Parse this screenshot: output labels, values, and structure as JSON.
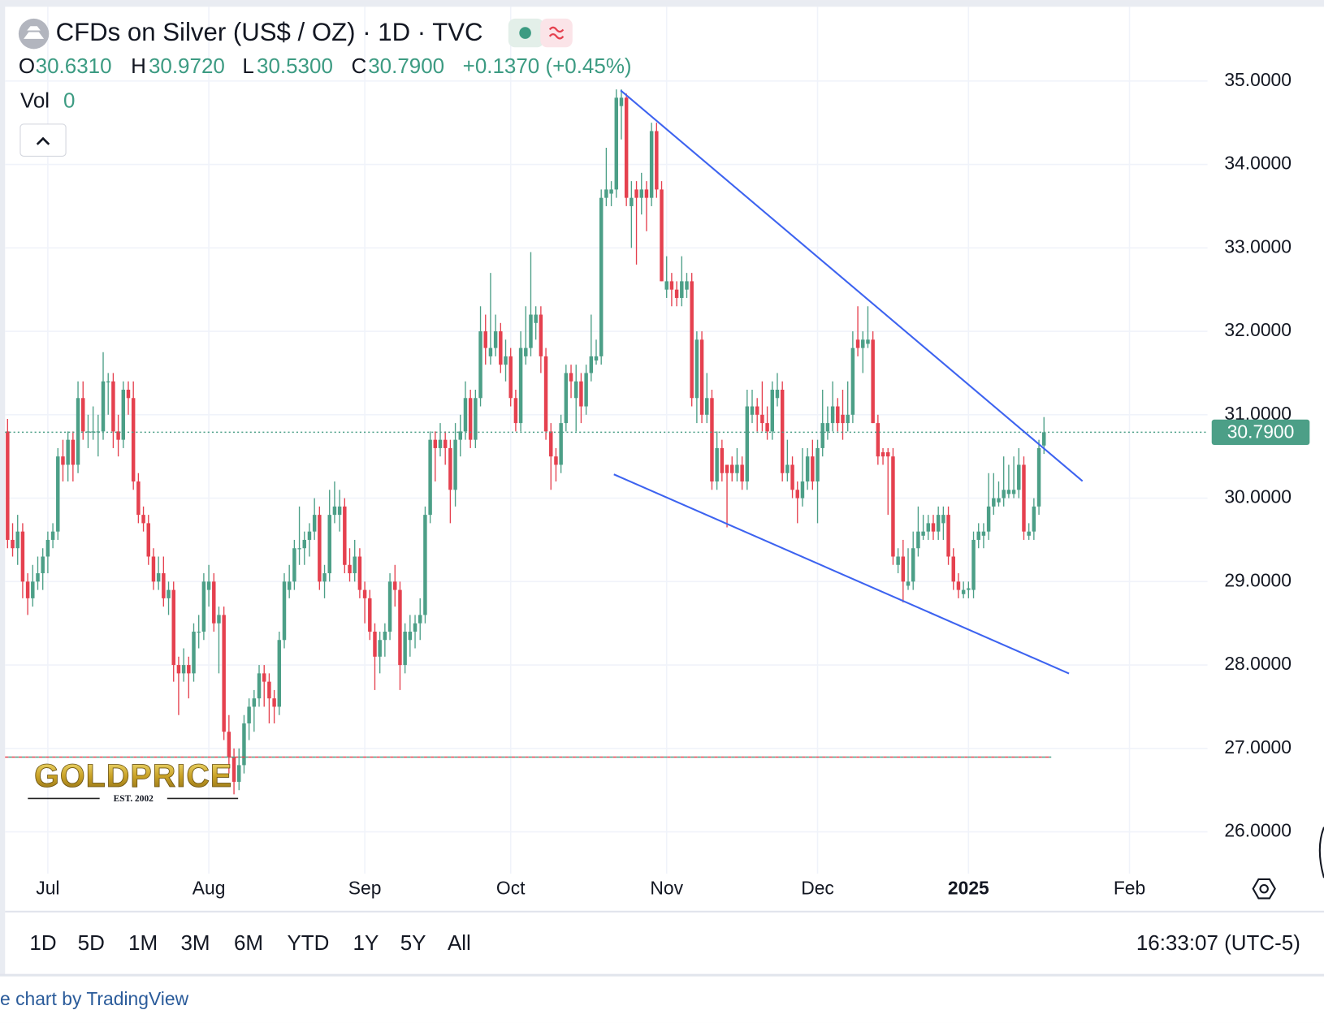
{
  "header": {
    "title": "CFDs on Silver (US$ / OZ) · 1D · TVC",
    "open_label": "O",
    "open": "30.6310",
    "high_label": "H",
    "high": "30.9720",
    "low_label": "L",
    "low": "30.5300",
    "close_label": "C",
    "close": "30.7900",
    "change": "+0.1370 (+0.45%)",
    "volume_label": "Vol",
    "volume": "0"
  },
  "chart_data": {
    "type": "candlestick",
    "up_color": "#4c9f87",
    "down_color": "#e5414f",
    "grid": true,
    "ylim": [
      25.5,
      35.89
    ],
    "yticks": [
      {
        "value": 26,
        "label": "26.0000"
      },
      {
        "value": 27,
        "label": "27.0000"
      },
      {
        "value": 28,
        "label": "28.0000"
      },
      {
        "value": 29,
        "label": "29.0000"
      },
      {
        "value": 30,
        "label": "30.0000"
      },
      {
        "value": 31,
        "label": "31.0000"
      },
      {
        "value": 32,
        "label": "32.0000"
      },
      {
        "value": 33,
        "label": "33.0000"
      },
      {
        "value": 34,
        "label": "34.0000"
      },
      {
        "value": 35,
        "label": "35.0000"
      }
    ],
    "last_price_label": "30.7900",
    "categories": [
      null,
      null,
      null,
      null,
      null,
      null,
      null,
      null,
      "Jul",
      null,
      null,
      null,
      null,
      null,
      null,
      null,
      null,
      null,
      null,
      null,
      null,
      null,
      null,
      null,
      null,
      null,
      null,
      null,
      null,
      null,
      null,
      null,
      null,
      null,
      null,
      null,
      null,
      null,
      null,
      null,
      "Aug",
      null,
      null,
      null,
      null,
      null,
      null,
      null,
      null,
      null,
      null,
      null,
      null,
      null,
      null,
      null,
      null,
      null,
      null,
      null,
      null,
      null,
      null,
      null,
      null,
      null,
      null,
      null,
      null,
      null,
      null,
      "Sep",
      null,
      null,
      null,
      null,
      null,
      null,
      null,
      null,
      null,
      null,
      null,
      null,
      null,
      null,
      null,
      null,
      null,
      null,
      null,
      null,
      null,
      null,
      null,
      null,
      null,
      null,
      null,
      null,
      "Oct",
      null,
      null,
      null,
      null,
      null,
      null,
      null,
      null,
      null,
      null,
      null,
      null,
      null,
      null,
      null,
      null,
      null,
      null,
      null,
      null,
      null,
      null,
      null,
      null,
      null,
      null,
      null,
      null,
      null,
      null,
      "Nov",
      null,
      null,
      null,
      null,
      null,
      null,
      null,
      null,
      null,
      null,
      null,
      null,
      null,
      null,
      null,
      null,
      null,
      null,
      null,
      null,
      null,
      null,
      null,
      null,
      null,
      null,
      null,
      null,
      null,
      "Dec",
      null,
      null,
      null,
      null,
      null,
      null,
      null,
      null,
      null,
      null,
      null,
      null,
      null,
      null,
      null,
      null,
      null,
      null,
      null,
      null,
      null,
      null,
      null,
      null,
      null,
      null,
      null,
      null,
      null,
      "2025",
      null,
      null,
      null,
      null,
      null,
      null,
      null,
      null,
      null,
      null,
      null,
      null,
      null,
      null,
      null,
      null,
      null,
      null,
      null,
      null,
      null,
      null,
      null,
      null,
      null,
      null,
      null,
      null,
      null,
      null,
      null,
      "Feb",
      null,
      null,
      null,
      null,
      null,
      null,
      null,
      null,
      null,
      null,
      null,
      null,
      null,
      null,
      null
    ],
    "ohlc": [
      [
        30.8,
        30.95,
        29.4,
        29.5
      ],
      [
        29.5,
        29.7,
        29.3,
        29.4
      ],
      [
        29.4,
        29.8,
        29.2,
        29.6
      ],
      [
        29.6,
        29.7,
        28.8,
        29.0
      ],
      [
        29.0,
        29.1,
        28.6,
        28.8
      ],
      [
        28.8,
        29.2,
        28.7,
        29.0
      ],
      [
        29.0,
        29.3,
        28.9,
        29.1
      ],
      [
        29.1,
        29.4,
        28.9,
        29.3
      ],
      [
        29.3,
        29.6,
        29.1,
        29.5
      ],
      [
        29.5,
        29.7,
        29.4,
        29.6
      ],
      [
        29.6,
        30.6,
        29.5,
        30.5
      ],
      [
        30.5,
        30.7,
        30.2,
        30.4
      ],
      [
        30.4,
        30.8,
        30.2,
        30.7
      ],
      [
        30.7,
        30.8,
        30.2,
        30.4
      ],
      [
        30.4,
        31.4,
        30.3,
        31.2
      ],
      [
        31.2,
        31.4,
        30.7,
        30.8
      ],
      [
        30.8,
        31.0,
        30.6,
        30.8
      ],
      [
        30.8,
        31.1,
        30.7,
        30.8
      ],
      [
        30.8,
        31.0,
        30.5,
        30.8
      ],
      [
        30.8,
        31.75,
        30.7,
        31.4
      ],
      [
        31.4,
        31.5,
        31.0,
        31.4
      ],
      [
        31.4,
        31.5,
        30.6,
        30.8
      ],
      [
        30.8,
        31.0,
        30.5,
        30.7
      ],
      [
        30.7,
        31.4,
        30.6,
        31.3
      ],
      [
        31.3,
        31.4,
        31.0,
        31.2
      ],
      [
        31.2,
        31.4,
        30.1,
        30.2
      ],
      [
        30.2,
        30.3,
        29.7,
        29.8
      ],
      [
        29.8,
        29.9,
        29.6,
        29.7
      ],
      [
        29.7,
        29.8,
        29.2,
        29.3
      ],
      [
        29.3,
        29.4,
        28.9,
        29.0
      ],
      [
        29.0,
        29.3,
        28.9,
        29.1
      ],
      [
        29.1,
        29.3,
        28.7,
        28.8
      ],
      [
        28.8,
        29.0,
        28.6,
        28.9
      ],
      [
        28.9,
        29.0,
        27.8,
        28.0
      ],
      [
        28.0,
        28.1,
        27.4,
        27.9
      ],
      [
        27.9,
        28.2,
        27.8,
        28.0
      ],
      [
        28.0,
        28.1,
        27.6,
        27.9
      ],
      [
        27.9,
        28.5,
        27.8,
        28.4
      ],
      [
        28.4,
        28.6,
        28.2,
        28.4
      ],
      [
        28.4,
        29.1,
        28.3,
        29.0
      ],
      [
        28.9,
        29.2,
        28.7,
        29.0
      ],
      [
        29.0,
        29.1,
        28.4,
        28.5
      ],
      [
        28.5,
        28.7,
        27.9,
        28.6
      ],
      [
        28.6,
        28.7,
        27.1,
        27.2
      ],
      [
        27.2,
        27.4,
        26.7,
        26.9
      ],
      [
        26.9,
        27.0,
        26.45,
        26.6
      ],
      [
        26.6,
        27.0,
        26.5,
        26.8
      ],
      [
        26.8,
        27.4,
        26.7,
        27.3
      ],
      [
        27.3,
        27.6,
        27.1,
        27.5
      ],
      [
        27.5,
        27.7,
        27.2,
        27.6
      ],
      [
        27.6,
        28.0,
        27.5,
        27.9
      ],
      [
        27.9,
        28.0,
        27.5,
        27.8
      ],
      [
        27.8,
        27.9,
        27.3,
        27.6
      ],
      [
        27.6,
        27.7,
        27.3,
        27.5
      ],
      [
        27.5,
        28.4,
        27.4,
        28.3
      ],
      [
        28.3,
        29.1,
        28.2,
        29.0
      ],
      [
        28.9,
        29.2,
        28.8,
        29.0
      ],
      [
        29.0,
        29.5,
        28.9,
        29.4
      ],
      [
        29.4,
        29.9,
        29.2,
        29.4
      ],
      [
        29.4,
        29.6,
        29.2,
        29.5
      ],
      [
        29.5,
        29.7,
        29.3,
        29.6
      ],
      [
        29.6,
        30.0,
        29.5,
        29.8
      ],
      [
        29.8,
        29.9,
        28.9,
        29.0
      ],
      [
        29.0,
        29.2,
        28.8,
        29.1
      ],
      [
        29.1,
        30.1,
        29.0,
        29.8
      ],
      [
        29.8,
        30.2,
        29.7,
        29.9
      ],
      [
        29.8,
        30.1,
        29.6,
        29.9
      ],
      [
        29.9,
        30.0,
        29.1,
        29.2
      ],
      [
        29.2,
        29.4,
        29.0,
        29.1
      ],
      [
        29.1,
        29.5,
        29.0,
        29.3
      ],
      [
        29.3,
        29.4,
        28.8,
        28.9
      ],
      [
        28.9,
        29.0,
        28.5,
        28.8
      ],
      [
        28.8,
        28.9,
        28.3,
        28.4
      ],
      [
        28.4,
        28.5,
        27.7,
        28.1
      ],
      [
        28.1,
        28.4,
        27.9,
        28.3
      ],
      [
        28.3,
        28.5,
        28.1,
        28.4
      ],
      [
        28.4,
        29.1,
        28.3,
        29.0
      ],
      [
        29.0,
        29.2,
        28.7,
        28.9
      ],
      [
        28.9,
        29.0,
        27.7,
        28.0
      ],
      [
        28.0,
        28.5,
        27.9,
        28.4
      ],
      [
        28.3,
        28.6,
        28.1,
        28.4
      ],
      [
        28.4,
        28.6,
        28.2,
        28.5
      ],
      [
        28.5,
        28.8,
        28.3,
        28.6
      ],
      [
        28.6,
        29.9,
        28.5,
        29.8
      ],
      [
        29.8,
        30.8,
        29.7,
        30.7
      ],
      [
        30.7,
        30.8,
        30.2,
        30.6
      ],
      [
        30.6,
        30.9,
        30.5,
        30.7
      ],
      [
        30.7,
        30.8,
        30.4,
        30.6
      ],
      [
        30.6,
        30.7,
        29.7,
        30.1
      ],
      [
        30.1,
        30.9,
        29.9,
        30.7
      ],
      [
        30.7,
        31.0,
        30.5,
        30.8
      ],
      [
        30.8,
        31.4,
        30.7,
        31.2
      ],
      [
        31.2,
        31.3,
        30.6,
        30.7
      ],
      [
        30.7,
        31.3,
        30.6,
        31.2
      ],
      [
        31.2,
        32.3,
        31.1,
        32.0
      ],
      [
        32.0,
        32.2,
        31.6,
        31.8
      ],
      [
        31.7,
        32.7,
        31.6,
        31.8
      ],
      [
        31.8,
        32.2,
        31.7,
        32.0
      ],
      [
        32.0,
        32.1,
        31.5,
        31.6
      ],
      [
        31.6,
        31.9,
        31.4,
        31.7
      ],
      [
        31.7,
        31.8,
        31.1,
        31.2
      ],
      [
        31.2,
        31.3,
        30.8,
        30.9
      ],
      [
        30.9,
        32.0,
        30.8,
        31.8
      ],
      [
        31.7,
        32.3,
        31.6,
        31.8
      ],
      [
        31.8,
        32.95,
        31.7,
        32.2
      ],
      [
        32.1,
        32.3,
        31.9,
        32.2
      ],
      [
        32.2,
        32.3,
        31.5,
        31.7
      ],
      [
        31.7,
        31.8,
        30.7,
        30.8
      ],
      [
        30.8,
        30.9,
        30.1,
        30.5
      ],
      [
        30.5,
        30.6,
        30.2,
        30.4
      ],
      [
        30.4,
        31.0,
        30.3,
        30.9
      ],
      [
        30.9,
        31.6,
        30.8,
        31.5
      ],
      [
        31.5,
        31.6,
        31.2,
        31.4
      ],
      [
        31.2,
        31.6,
        30.8,
        31.4
      ],
      [
        31.4,
        31.5,
        30.9,
        31.1
      ],
      [
        31.1,
        31.6,
        31.0,
        31.5
      ],
      [
        31.5,
        32.2,
        31.4,
        31.7
      ],
      [
        31.65,
        31.9,
        31.6,
        31.7
      ],
      [
        31.7,
        33.7,
        31.6,
        33.6
      ],
      [
        33.6,
        34.2,
        33.5,
        33.7
      ],
      [
        33.65,
        33.8,
        33.5,
        33.7
      ],
      [
        33.7,
        34.9,
        33.6,
        34.8
      ],
      [
        34.7,
        34.9,
        34.3,
        34.8
      ],
      [
        34.8,
        34.85,
        33.5,
        33.6
      ],
      [
        33.5,
        33.8,
        33.0,
        33.6
      ],
      [
        33.7,
        33.8,
        32.8,
        33.6
      ],
      [
        33.6,
        33.9,
        33.4,
        33.7
      ],
      [
        33.7,
        33.8,
        33.2,
        33.6
      ],
      [
        33.6,
        34.5,
        33.5,
        34.4
      ],
      [
        34.4,
        34.5,
        33.6,
        33.7
      ],
      [
        33.7,
        33.8,
        32.6,
        32.6
      ],
      [
        32.5,
        32.9,
        32.4,
        32.6
      ],
      [
        32.6,
        32.7,
        32.3,
        32.5
      ],
      [
        32.5,
        32.6,
        32.3,
        32.4
      ],
      [
        32.4,
        32.9,
        32.3,
        32.6
      ],
      [
        32.5,
        32.7,
        32.4,
        32.6
      ],
      [
        32.6,
        32.7,
        31.1,
        31.2
      ],
      [
        31.2,
        32.0,
        30.9,
        31.9
      ],
      [
        31.9,
        32.0,
        30.9,
        31.0
      ],
      [
        31.0,
        31.5,
        30.9,
        31.2
      ],
      [
        31.2,
        31.3,
        30.1,
        30.2
      ],
      [
        30.2,
        30.8,
        30.1,
        30.6
      ],
      [
        30.6,
        30.7,
        30.2,
        30.3
      ],
      [
        30.4,
        30.4,
        29.65,
        30.3
      ],
      [
        30.4,
        30.5,
        30.2,
        30.3
      ],
      [
        30.3,
        30.6,
        30.2,
        30.4
      ],
      [
        30.4,
        30.5,
        30.1,
        30.2
      ],
      [
        30.2,
        31.3,
        30.1,
        31.1
      ],
      [
        31.0,
        31.3,
        30.9,
        31.1
      ],
      [
        31.1,
        31.2,
        30.8,
        31.0
      ],
      [
        31.0,
        31.4,
        30.8,
        30.9
      ],
      [
        30.9,
        31.1,
        30.7,
        30.8
      ],
      [
        30.8,
        31.4,
        30.7,
        31.3
      ],
      [
        31.2,
        31.5,
        31.1,
        31.3
      ],
      [
        31.3,
        31.4,
        30.2,
        30.3
      ],
      [
        30.3,
        30.7,
        30.2,
        30.4
      ],
      [
        30.4,
        30.5,
        30.0,
        30.1
      ],
      [
        30.1,
        30.2,
        29.7,
        30.0
      ],
      [
        30.0,
        30.6,
        29.9,
        30.2
      ],
      [
        30.2,
        30.6,
        30.1,
        30.5
      ],
      [
        30.5,
        30.7,
        30.1,
        30.2
      ],
      [
        30.2,
        30.7,
        29.7,
        30.6
      ],
      [
        30.6,
        31.3,
        30.5,
        30.9
      ],
      [
        30.8,
        31.1,
        30.7,
        30.9
      ],
      [
        30.9,
        31.4,
        30.8,
        31.1
      ],
      [
        31.1,
        31.2,
        30.8,
        30.9
      ],
      [
        31.0,
        31.3,
        30.7,
        30.9
      ],
      [
        30.9,
        31.4,
        30.8,
        31.0
      ],
      [
        31.0,
        32.0,
        30.9,
        31.8
      ],
      [
        31.9,
        32.3,
        31.7,
        31.8
      ],
      [
        31.8,
        32.0,
        31.5,
        31.9
      ],
      [
        31.85,
        32.3,
        31.8,
        31.9
      ],
      [
        31.9,
        32.0,
        30.9,
        30.9
      ],
      [
        30.9,
        31.0,
        30.4,
        30.5
      ],
      [
        30.55,
        30.6,
        30.4,
        30.5
      ],
      [
        30.55,
        30.6,
        29.8,
        30.5
      ],
      [
        30.5,
        30.6,
        29.2,
        29.3
      ],
      [
        29.2,
        29.4,
        29.1,
        29.3
      ],
      [
        29.3,
        29.5,
        28.75,
        29.0
      ],
      [
        28.95,
        29.4,
        28.9,
        29.0
      ],
      [
        29.0,
        29.6,
        28.9,
        29.4
      ],
      [
        29.4,
        29.9,
        29.3,
        29.6
      ],
      [
        29.55,
        29.8,
        29.5,
        29.6
      ],
      [
        29.6,
        29.8,
        29.5,
        29.7
      ],
      [
        29.7,
        29.8,
        29.5,
        29.6
      ],
      [
        29.6,
        29.9,
        29.5,
        29.8
      ],
      [
        29.7,
        29.9,
        29.5,
        29.8
      ],
      [
        29.8,
        29.9,
        29.2,
        29.3
      ],
      [
        29.3,
        29.4,
        28.9,
        29.0
      ],
      [
        29.0,
        29.1,
        28.8,
        28.9
      ],
      [
        28.85,
        29.0,
        28.8,
        28.9
      ],
      [
        28.9,
        29.0,
        28.8,
        28.92
      ],
      [
        28.9,
        29.6,
        28.8,
        29.5
      ],
      [
        29.5,
        29.7,
        29.4,
        29.6
      ],
      [
        29.55,
        29.7,
        29.4,
        29.6
      ],
      [
        29.6,
        30.3,
        29.5,
        29.9
      ],
      [
        29.9,
        30.3,
        29.8,
        30.0
      ],
      [
        29.95,
        30.2,
        29.9,
        30.0
      ],
      [
        30.0,
        30.5,
        29.9,
        30.1
      ],
      [
        30.05,
        30.4,
        30.0,
        30.1
      ],
      [
        30.05,
        30.5,
        30.0,
        30.1
      ],
      [
        30.1,
        30.6,
        30.0,
        30.4
      ],
      [
        30.4,
        30.5,
        29.5,
        29.6
      ],
      [
        29.55,
        29.7,
        29.5,
        29.6
      ],
      [
        29.6,
        30.0,
        29.5,
        29.9
      ],
      [
        29.9,
        30.7,
        29.8,
        30.6
      ],
      [
        30.631,
        30.972,
        30.53,
        30.79
      ],
      null,
      null,
      null,
      null,
      null,
      null,
      null,
      null,
      null,
      null,
      null,
      null,
      null,
      null,
      null,
      null,
      null,
      null,
      null,
      null,
      null,
      null,
      null,
      null,
      null,
      null,
      null,
      null,
      null,
      null,
      null,
      null
    ]
  },
  "toolbar": {
    "ranges": [
      "1D",
      "5D",
      "1M",
      "3M",
      "6M",
      "YTD",
      "1Y",
      "5Y",
      "All"
    ],
    "time": "16:33:07 (UTC-5)"
  },
  "watermark": {
    "name": "GOLDPRICE",
    "est": "EST. 2002"
  },
  "footer": "e chart by TradingView"
}
